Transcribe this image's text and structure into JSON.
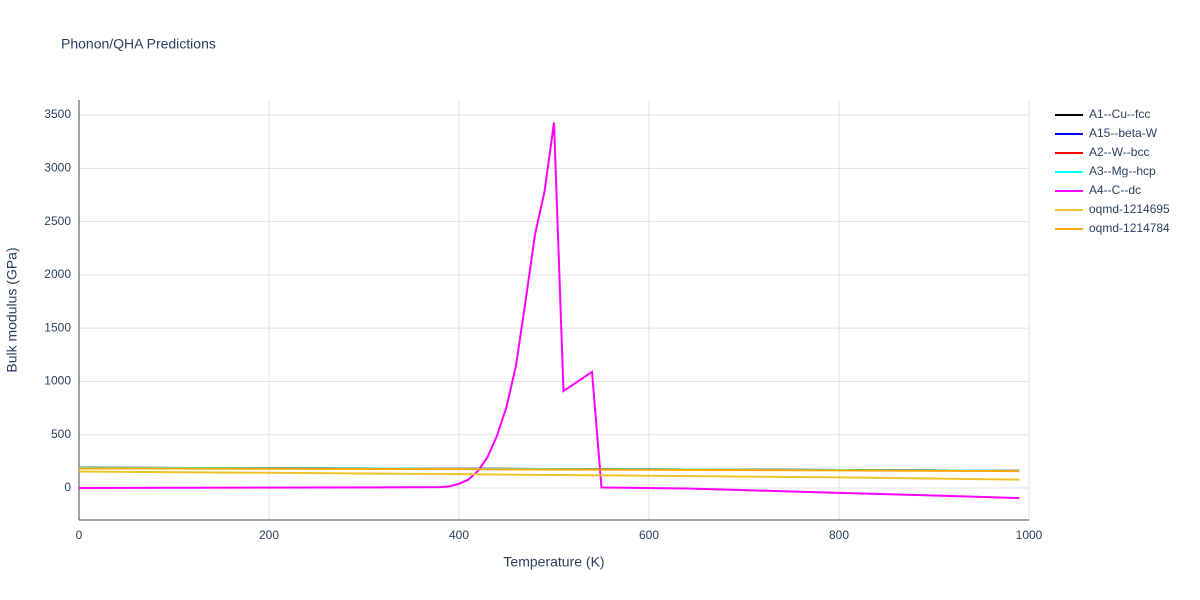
{
  "chart_data": {
    "type": "line",
    "title": "Phonon/QHA Predictions",
    "x_label": "Temperature (K)",
    "y_label": "Bulk modulus (GPa)",
    "xlim": [
      0,
      1000
    ],
    "ylim": [
      -300,
      3641
    ],
    "xticks": [
      0,
      200,
      400,
      600,
      800,
      1000
    ],
    "yticks": [
      0,
      500,
      1000,
      1500,
      2000,
      2500,
      3000,
      3500
    ],
    "grid": true,
    "legend": "right",
    "series": [
      {
        "name": "A1--Cu--fcc",
        "color": "#000000",
        "x": [
          0,
          200,
          400,
          600,
          800,
          990
        ],
        "values": [
          190,
          186,
          181,
          175,
          169,
          162
        ]
      },
      {
        "name": "A15--beta-W",
        "color": "#0000ff",
        "x": [
          0,
          200,
          400,
          600,
          800,
          990
        ],
        "values": [
          190,
          186,
          181,
          175,
          169,
          162
        ]
      },
      {
        "name": "A2--W--bcc",
        "color": "#ff0000",
        "x": [
          0,
          200,
          400,
          600,
          800,
          990
        ],
        "values": [
          190,
          186,
          181,
          175,
          169,
          162
        ]
      },
      {
        "name": "A3--Mg--hcp",
        "color": "#00ffff",
        "x": [
          0,
          200,
          400,
          600,
          800,
          990
        ],
        "values": [
          190,
          186,
          181,
          175,
          169,
          162
        ]
      },
      {
        "name": "A4--C--dc",
        "color": "#ff00ff",
        "x": [
          0,
          380,
          390,
          400,
          410,
          420,
          430,
          440,
          450,
          460,
          470,
          480,
          490,
          500,
          510,
          540,
          550,
          640,
          700,
          800,
          900,
          990
        ],
        "values": [
          0,
          8,
          15,
          40,
          80,
          160,
          290,
          490,
          760,
          1150,
          1750,
          2380,
          2780,
          3430,
          910,
          1090,
          5,
          -5,
          -20,
          -45,
          -70,
          -94
        ]
      },
      {
        "name": "oqmd-1214695",
        "color": "#eec32a",
        "x": [
          0,
          200,
          400,
          600,
          800,
          990
        ],
        "values": [
          155,
          143,
          130,
          115,
          100,
          78
        ]
      },
      {
        "name": "oqmd-1214784",
        "color": "#ffa500",
        "x": [
          0,
          200,
          400,
          600,
          800,
          990
        ],
        "values": [
          185,
          181,
          177,
          171,
          166,
          158
        ]
      }
    ]
  }
}
